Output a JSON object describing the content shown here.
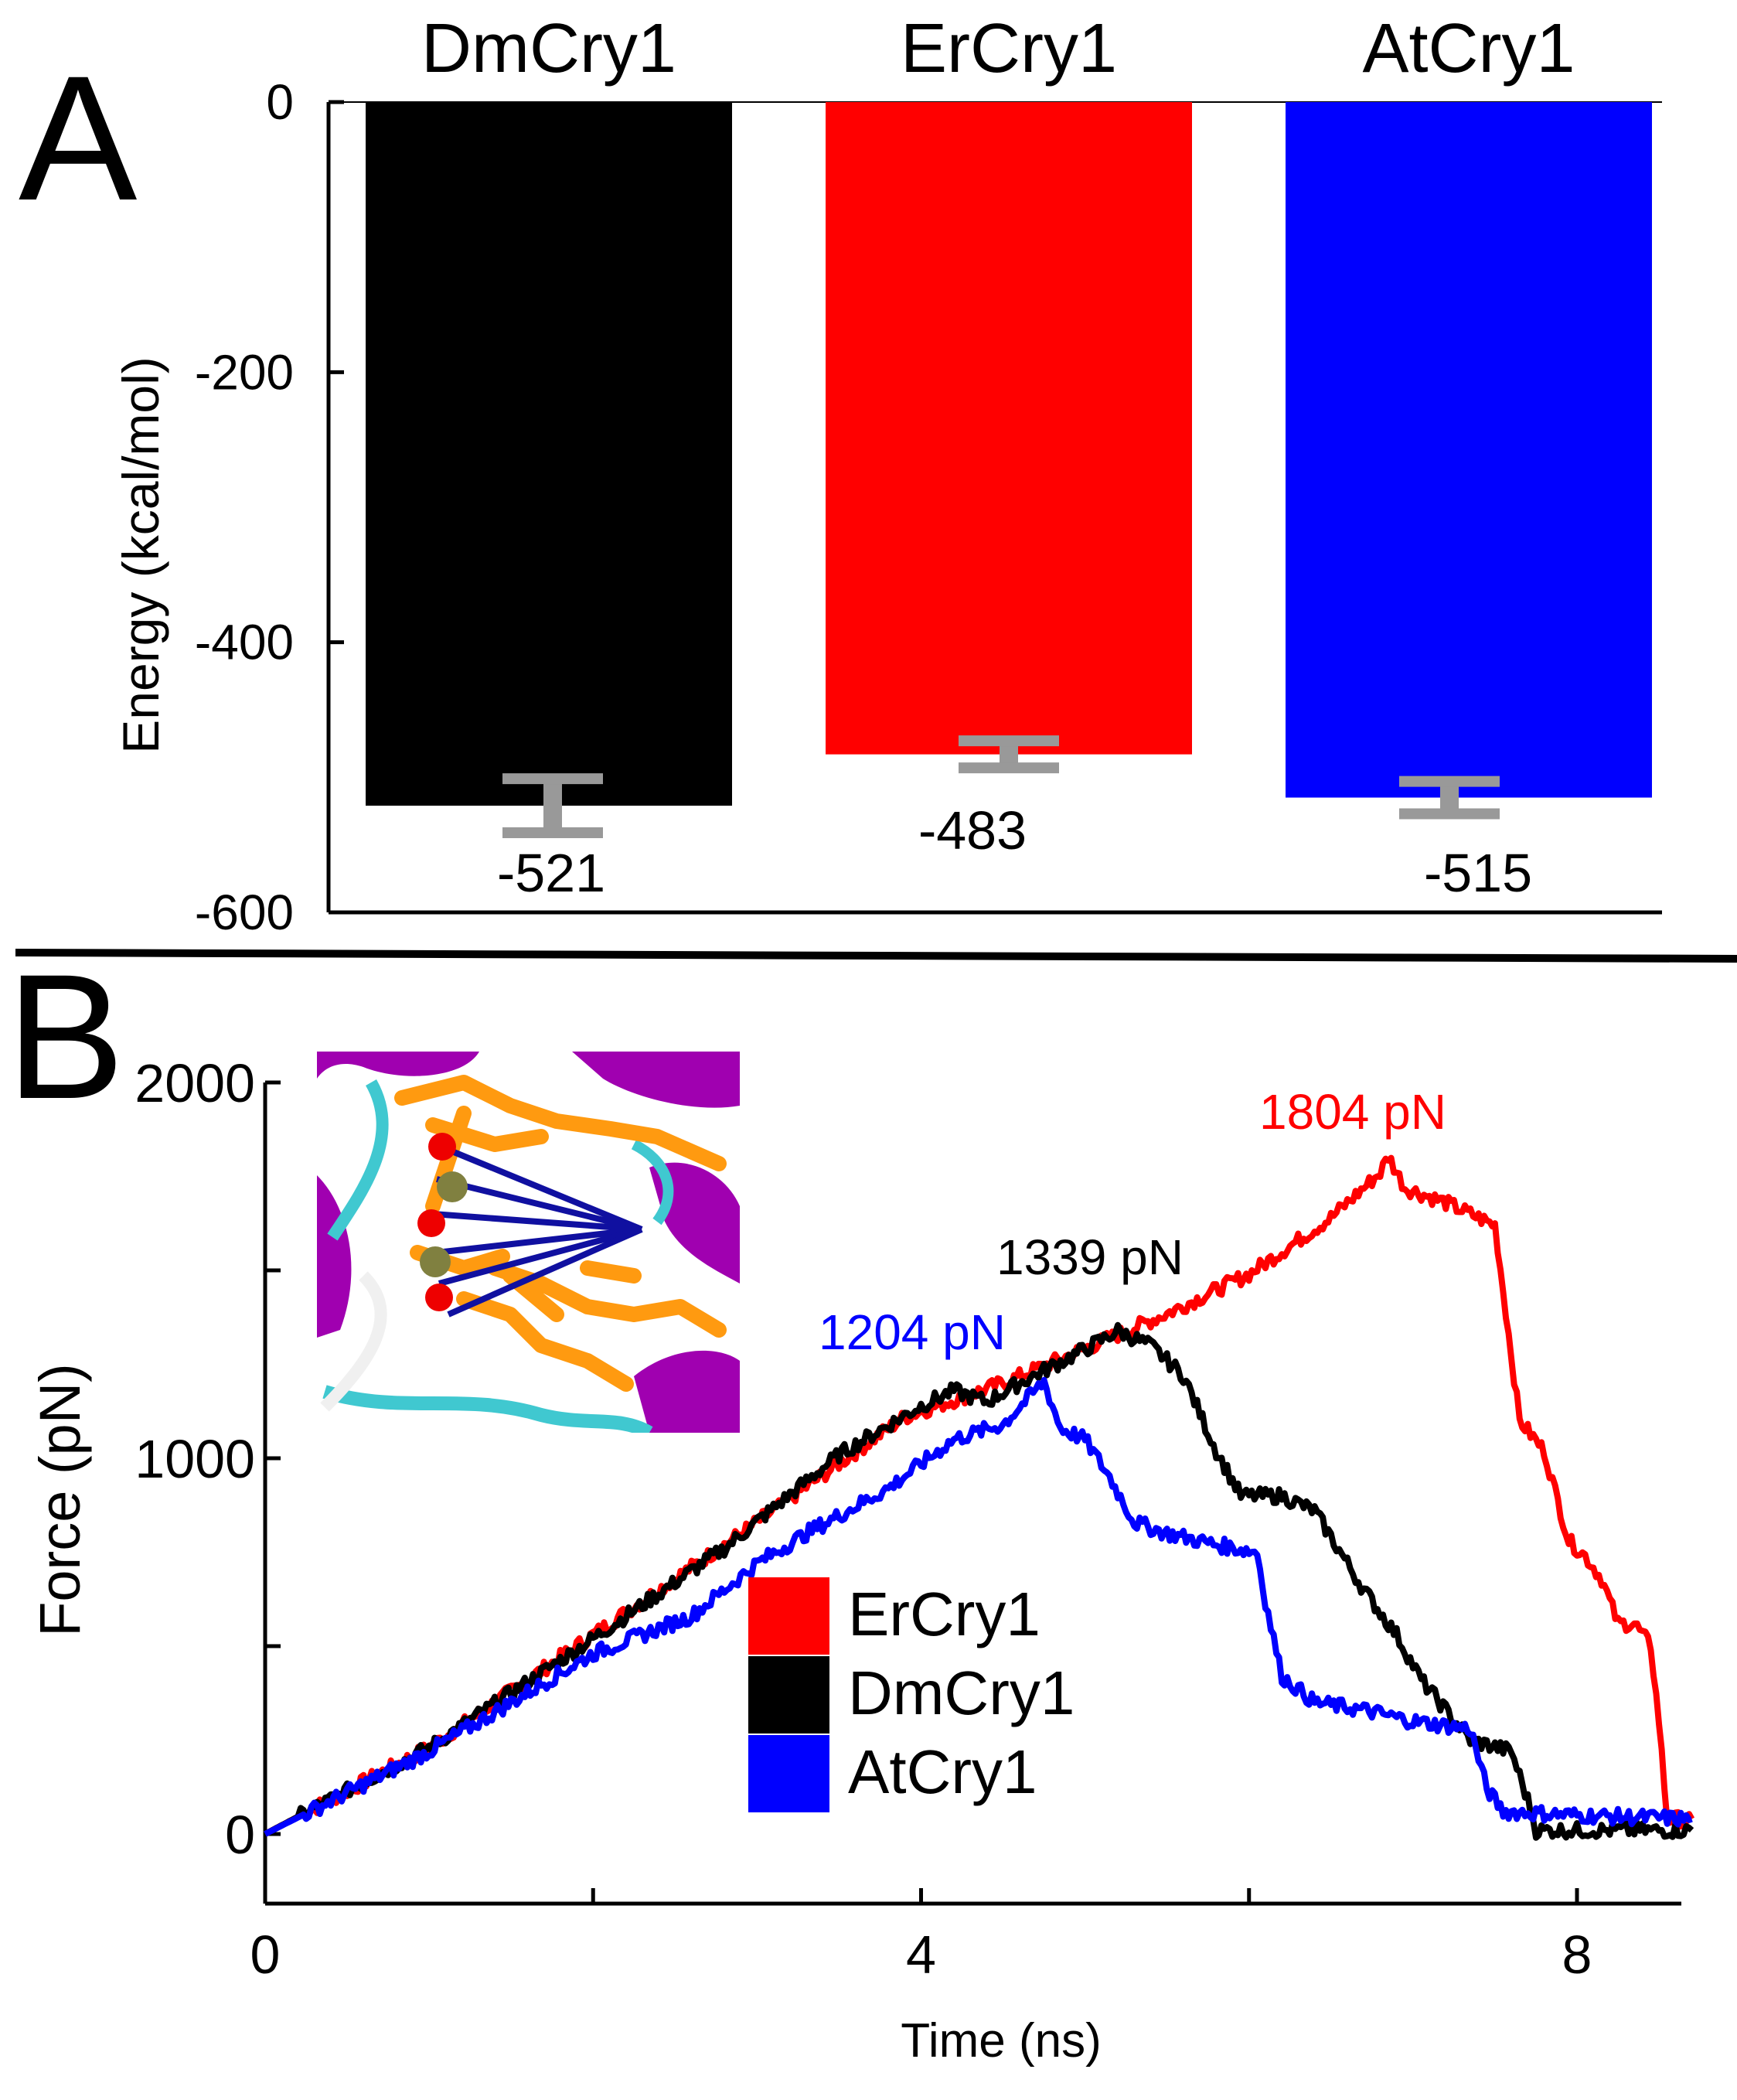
{
  "panels": {
    "a_letter": "A",
    "b_letter": "B"
  },
  "chart_data": [
    {
      "type": "bar",
      "categories": [
        "DmCry1",
        "ErCry1",
        "AtCry1"
      ],
      "values": [
        -521,
        -483,
        -515
      ],
      "errors": [
        20,
        10,
        12
      ],
      "value_labels": [
        "-521",
        "-483",
        "-515"
      ],
      "colors": [
        "#000000",
        "#ff0000",
        "#0000ff"
      ],
      "error_color": "#999999",
      "ylabel": "Energy (kcal/mol)",
      "xlabel": "",
      "ylim": [
        -600,
        0
      ],
      "yticks": [
        0,
        -200,
        -400,
        -600
      ],
      "ytick_labels": [
        "0",
        "-200",
        "-400",
        "-600"
      ]
    },
    {
      "type": "line",
      "xlabel": "Time (ns)",
      "ylabel": "Force (pN)",
      "xlim": [
        0,
        8.7
      ],
      "ylim": [
        -200,
        2000
      ],
      "xticks": [
        0,
        4,
        8
      ],
      "xtick_labels": [
        "0",
        "4",
        "8"
      ],
      "yticks": [
        0,
        1000,
        2000
      ],
      "ytick_labels": [
        "0",
        "1000",
        "2000"
      ],
      "series": [
        {
          "name": "ErCry1",
          "color": "#ff0000",
          "points": [
            [
              0,
              0
            ],
            [
              1,
              230
            ],
            [
              2,
              530
            ],
            [
              3,
              830
            ],
            [
              3.9,
              1110
            ],
            [
              4.5,
              1200
            ],
            [
              5.1,
              1310
            ],
            [
              5.5,
              1385
            ],
            [
              6,
              1490
            ],
            [
              6.5,
              1640
            ],
            [
              6.8,
              1760
            ],
            [
              6.85,
              1804
            ],
            [
              6.95,
              1720
            ],
            [
              7.2,
              1680
            ],
            [
              7.5,
              1620
            ],
            [
              7.65,
              1100
            ],
            [
              7.8,
              1020
            ],
            [
              7.95,
              780
            ],
            [
              8.05,
              740
            ],
            [
              8.15,
              680
            ],
            [
              8.25,
              560
            ],
            [
              8.35,
              560
            ],
            [
              8.45,
              500
            ],
            [
              8.5,
              300
            ],
            [
              8.55,
              40
            ],
            [
              8.7,
              40
            ]
          ],
          "peak_label": "1804 pN"
        },
        {
          "name": "DmCry1",
          "color": "#000000",
          "points": [
            [
              0,
              0
            ],
            [
              1,
              230
            ],
            [
              2,
              520
            ],
            [
              2.8,
              760
            ],
            [
              3.5,
              1010
            ],
            [
              4,
              1140
            ],
            [
              4.2,
              1180
            ],
            [
              4.4,
              1150
            ],
            [
              4.6,
              1200
            ],
            [
              5,
              1290
            ],
            [
              5.2,
              1339
            ],
            [
              5.4,
              1300
            ],
            [
              5.6,
              1220
            ],
            [
              5.8,
              1020
            ],
            [
              5.95,
              900
            ],
            [
              6.2,
              900
            ],
            [
              6.4,
              860
            ],
            [
              6.7,
              650
            ],
            [
              6.9,
              530
            ],
            [
              7.05,
              410
            ],
            [
              7.2,
              330
            ],
            [
              7.35,
              250
            ],
            [
              7.6,
              220
            ],
            [
              7.7,
              90
            ],
            [
              7.75,
              10
            ],
            [
              8,
              10
            ],
            [
              8.7,
              10
            ]
          ],
          "peak_label": "1339 pN"
        },
        {
          "name": "AtCry1",
          "color": "#0000ff",
          "points": [
            [
              0,
              0
            ],
            [
              1,
              220
            ],
            [
              2,
              480
            ],
            [
              2.6,
              580
            ],
            [
              3,
              720
            ],
            [
              3.3,
              800
            ],
            [
              3.8,
              920
            ],
            [
              4.2,
              1050
            ],
            [
              4.5,
              1090
            ],
            [
              4.75,
              1204
            ],
            [
              4.85,
              1080
            ],
            [
              5,
              1050
            ],
            [
              5.15,
              950
            ],
            [
              5.3,
              830
            ],
            [
              5.5,
              800
            ],
            [
              5.8,
              770
            ],
            [
              6.05,
              750
            ],
            [
              6.1,
              620
            ],
            [
              6.2,
              420
            ],
            [
              6.4,
              350
            ],
            [
              6.7,
              330
            ],
            [
              7,
              300
            ],
            [
              7.35,
              280
            ],
            [
              7.45,
              120
            ],
            [
              7.55,
              60
            ],
            [
              8,
              50
            ],
            [
              8.7,
              40
            ]
          ],
          "peak_label": "1204 pN"
        }
      ],
      "legend": [
        "ErCry1",
        "DmCry1",
        "AtCry1"
      ],
      "legend_placement": "center-right"
    }
  ]
}
